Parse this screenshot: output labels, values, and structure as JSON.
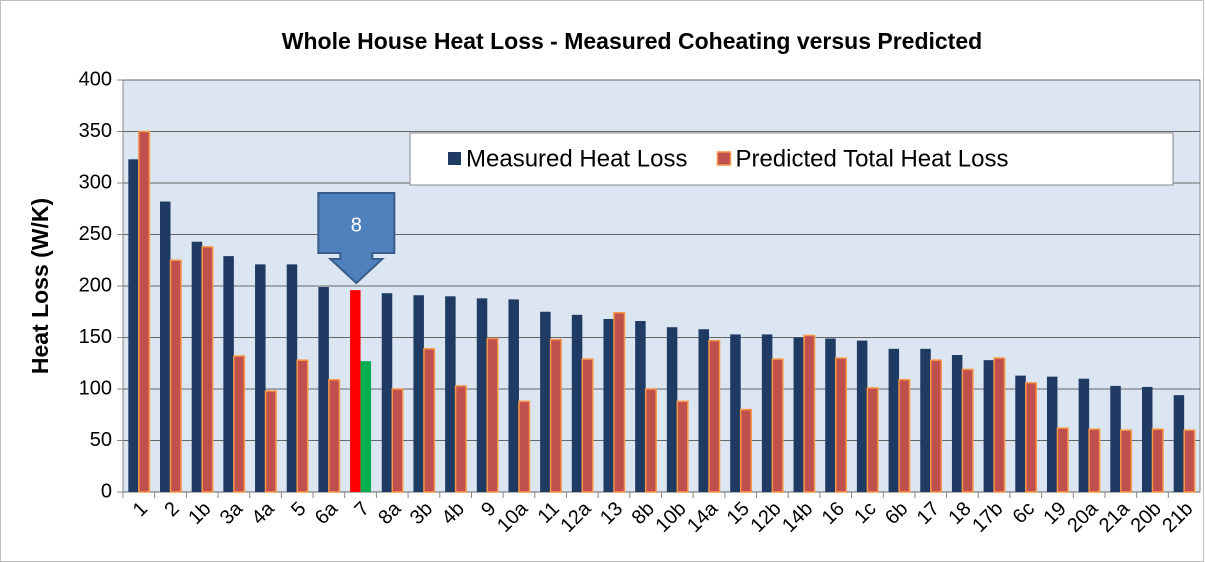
{
  "chart_data": {
    "type": "bar",
    "title": "Whole House Heat Loss - Measured Coheating versus Predicted",
    "y_label": "Heat Loss (W/K)",
    "categories": [
      "1",
      "2",
      "1b",
      "3a",
      "4a",
      "5",
      "6a",
      "7",
      "8a",
      "3b",
      "4b",
      "9",
      "10a",
      "11",
      "12a",
      "13",
      "8b",
      "10b",
      "14a",
      "15",
      "12b",
      "14b",
      "16",
      "1c",
      "6b",
      "17",
      "18",
      "17b",
      "6c",
      "19",
      "20a",
      "21a",
      "20b",
      "21b"
    ],
    "series": [
      {
        "name": "Measured Heat Loss",
        "color": "#1f3a63",
        "point_colors": {
          "7": "#ff0000"
        },
        "values": [
          323,
          282,
          243,
          229,
          221,
          221,
          199,
          196,
          193,
          191,
          190,
          188,
          187,
          175,
          172,
          168,
          166,
          160,
          158,
          153,
          153,
          150,
          149,
          147,
          139,
          139,
          133,
          128,
          113,
          112,
          110,
          103,
          102,
          94
        ]
      },
      {
        "name": "Predicted Total Heat Loss",
        "color": "#c0504d",
        "point_colors": {
          "7": "#00b050"
        },
        "values": [
          350,
          225,
          238,
          132,
          98,
          128,
          109,
          127,
          100,
          139,
          103,
          149,
          88,
          148,
          129,
          174,
          100,
          88,
          147,
          80,
          129,
          152,
          130,
          101,
          109,
          128,
          119,
          130,
          106,
          62,
          61,
          60,
          61,
          60
        ]
      }
    ],
    "ylim": [
      0,
      400
    ],
    "yticks": [
      0,
      50,
      100,
      150,
      200,
      250,
      300,
      350,
      400
    ],
    "grid": true,
    "annotation": {
      "text": "8",
      "category": "7"
    }
  }
}
